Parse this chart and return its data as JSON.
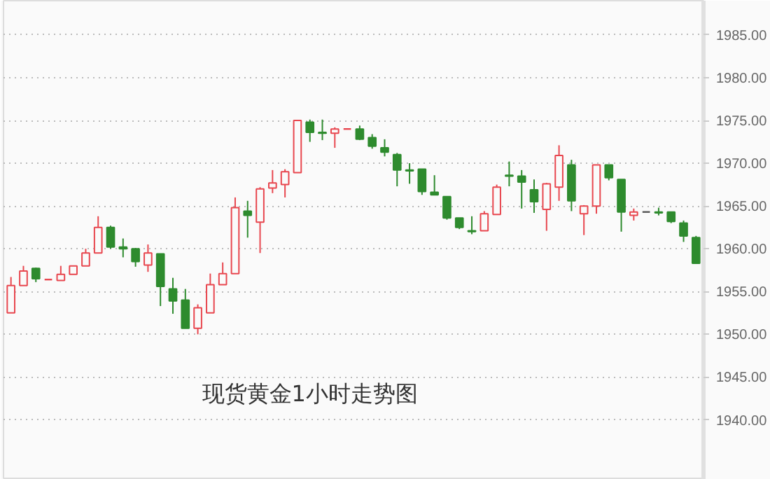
{
  "chart_data": {
    "type": "candlestick",
    "title": "现货黄金1小时走势图",
    "categories": [
      null,
      null,
      null,
      null,
      null,
      null,
      null,
      null,
      null,
      null,
      null,
      null,
      null,
      null,
      null,
      null,
      null,
      null,
      null,
      null,
      null,
      null,
      null,
      null,
      null,
      null,
      null,
      null,
      null,
      null,
      null,
      null,
      null,
      null,
      null,
      null,
      null,
      null,
      null,
      null,
      null,
      null,
      null,
      null,
      null,
      null,
      null,
      null,
      null,
      null,
      null,
      null,
      null,
      null,
      null,
      null
    ],
    "ohlc": [
      [
        1952.5,
        1956.7,
        1952.5,
        1955.7
      ],
      [
        1955.7,
        1958.0,
        1955.7,
        1957.4
      ],
      [
        1957.7,
        1957.8,
        1956.1,
        1956.5
      ],
      [
        1956.4,
        1956.4,
        1956.4,
        1956.4
      ],
      [
        1956.3,
        1958.0,
        1956.3,
        1957.0
      ],
      [
        1957.0,
        1958.0,
        1957.0,
        1958.0
      ],
      [
        1958.0,
        1960.0,
        1958.0,
        1959.5
      ],
      [
        1959.5,
        1963.8,
        1959.5,
        1962.5
      ],
      [
        1962.5,
        1962.7,
        1960.0,
        1960.2
      ],
      [
        1960.2,
        1961.2,
        1959.0,
        1960.0
      ],
      [
        1960.0,
        1960.1,
        1957.9,
        1958.5
      ],
      [
        1958.1,
        1960.5,
        1957.3,
        1959.5
      ],
      [
        1959.4,
        1959.4,
        1953.3,
        1955.6
      ],
      [
        1955.3,
        1956.6,
        1952.4,
        1953.9
      ],
      [
        1954.0,
        1955.3,
        1950.7,
        1950.7
      ],
      [
        1950.7,
        1953.5,
        1950.0,
        1953.1
      ],
      [
        1952.5,
        1957.1,
        1952.5,
        1955.8
      ],
      [
        1955.8,
        1958.4,
        1955.8,
        1957.1
      ],
      [
        1957.1,
        1966.0,
        1957.1,
        1964.8
      ],
      [
        1964.4,
        1965.6,
        1961.3,
        1963.9
      ],
      [
        1963.1,
        1967.2,
        1959.5,
        1967.0
      ],
      [
        1967.1,
        1969.2,
        1966.5,
        1967.7
      ],
      [
        1967.5,
        1969.3,
        1966.0,
        1969.0
      ],
      [
        1968.9,
        1975.0,
        1968.9,
        1975.0
      ],
      [
        1974.8,
        1975.1,
        1972.5,
        1973.6
      ],
      [
        1973.6,
        1975.1,
        1972.7,
        1973.5
      ],
      [
        1973.5,
        1974.2,
        1971.8,
        1974.0
      ],
      [
        1974.0,
        1974.0,
        1974.0,
        1974.0
      ],
      [
        1974.0,
        1974.4,
        1972.7,
        1972.8
      ],
      [
        1973.0,
        1973.4,
        1971.7,
        1972.0
      ],
      [
        1971.8,
        1972.8,
        1970.8,
        1971.3
      ],
      [
        1971.0,
        1971.2,
        1967.3,
        1969.2
      ],
      [
        1969.2,
        1970.0,
        1967.6,
        1969.1
      ],
      [
        1969.3,
        1969.3,
        1966.3,
        1966.7
      ],
      [
        1966.6,
        1968.6,
        1966.3,
        1966.3
      ],
      [
        1966.1,
        1966.1,
        1963.4,
        1963.6
      ],
      [
        1963.6,
        1963.6,
        1962.3,
        1962.5
      ],
      [
        1962.1,
        1963.8,
        1961.7,
        1962.0
      ],
      [
        1962.1,
        1964.4,
        1962.1,
        1964.1
      ],
      [
        1964.0,
        1967.5,
        1964.0,
        1967.2
      ],
      [
        1968.6,
        1970.2,
        1967.3,
        1968.5
      ],
      [
        1968.5,
        1969.2,
        1964.7,
        1967.8
      ],
      [
        1966.9,
        1968.1,
        1964.2,
        1965.5
      ],
      [
        1964.6,
        1967.7,
        1962.1,
        1967.6
      ],
      [
        1967.2,
        1972.1,
        1965.6,
        1970.9
      ],
      [
        1969.8,
        1970.4,
        1964.4,
        1965.6
      ],
      [
        1964.1,
        1965.1,
        1961.6,
        1965.0
      ],
      [
        1965.0,
        1969.8,
        1964.1,
        1969.8
      ],
      [
        1969.8,
        1969.8,
        1968.0,
        1968.3
      ],
      [
        1968.1,
        1968.1,
        1962.0,
        1964.3
      ],
      [
        1963.9,
        1964.7,
        1963.3,
        1964.3
      ],
      [
        1964.3,
        1964.3,
        1964.3,
        1964.3
      ],
      [
        1964.3,
        1964.8,
        1963.9,
        1964.2
      ],
      [
        1964.3,
        1964.3,
        1963.0,
        1963.2
      ],
      [
        1963.0,
        1963.3,
        1960.8,
        1961.5
      ],
      [
        1961.3,
        1961.5,
        1958.3,
        1958.3
      ]
    ],
    "colors": [
      "#e8474f",
      "#e8474f",
      "#2e8b2e",
      "#e8474f",
      "#e8474f",
      "#e8474f",
      "#e8474f",
      "#e8474f",
      "#2e8b2e",
      "#2e8b2e",
      "#2e8b2e",
      "#e8474f",
      "#2e8b2e",
      "#2e8b2e",
      "#2e8b2e",
      "#e8474f",
      "#e8474f",
      "#e8474f",
      "#e8474f",
      "#2e8b2e",
      "#e8474f",
      "#e8474f",
      "#e8474f",
      "#e8474f",
      "#2e8b2e",
      "#2e8b2e",
      "#e8474f",
      "#e8474f",
      "#2e8b2e",
      "#2e8b2e",
      "#2e8b2e",
      "#2e8b2e",
      "#2e8b2e",
      "#2e8b2e",
      "#2e8b2e",
      "#2e8b2e",
      "#2e8b2e",
      "#2e8b2e",
      "#e8474f",
      "#e8474f",
      "#2e8b2e",
      "#2e8b2e",
      "#2e8b2e",
      "#e8474f",
      "#e8474f",
      "#2e8b2e",
      "#e8474f",
      "#e8474f",
      "#2e8b2e",
      "#2e8b2e",
      "#e8474f",
      "#555555",
      "#2e8b2e",
      "#2e8b2e",
      "#2e8b2e",
      "#2e8b2e"
    ],
    "ylim": [
      1933,
      1989
    ],
    "yticks": [
      {
        "value": 1940,
        "label": "1940.00"
      },
      {
        "value": 1945,
        "label": "1945.00"
      },
      {
        "value": 1950,
        "label": "1950.00"
      },
      {
        "value": 1955,
        "label": "1955.00"
      },
      {
        "value": 1960,
        "label": "1960.00"
      },
      {
        "value": 1965,
        "label": "1965.00"
      },
      {
        "value": 1970,
        "label": "1970.00"
      },
      {
        "value": 1975,
        "label": "1975.00"
      },
      {
        "value": 1980,
        "label": "1980.00"
      },
      {
        "value": 1985,
        "label": "1985.00"
      }
    ],
    "grid": "y",
    "tick_labels": "y"
  }
}
